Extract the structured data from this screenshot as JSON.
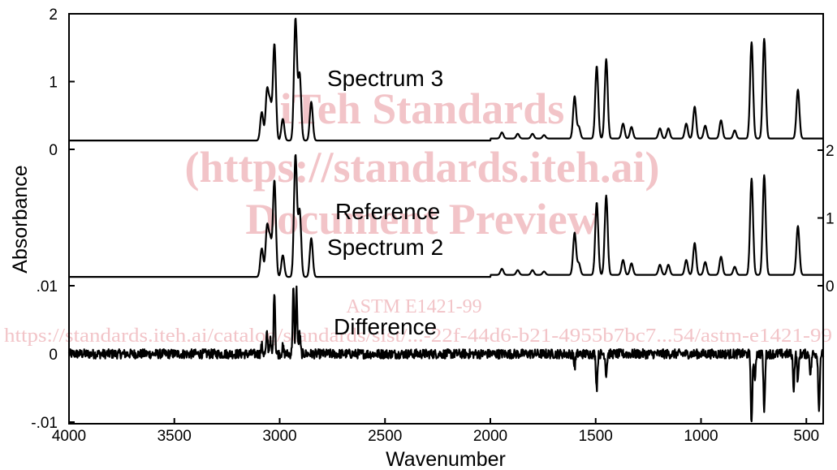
{
  "watermark": {
    "line1": "iTeh Standards",
    "line2": "(https://standards.iteh.ai)",
    "line3": "Document Preview",
    "line4": "ASTM E1421-99",
    "line5": "https://standards.iteh.ai/catalog/standards/sist/...-22f-44d6-b21-4955b7bc7...54/astm-e1421-99"
  },
  "chart_data": {
    "type": "line",
    "xlabel": "Wavenumber",
    "ylabel": "Absorbance",
    "xlim": [
      4000,
      420
    ],
    "x_ticks": [
      4000,
      3500,
      3000,
      2500,
      2000,
      1500,
      1000,
      500
    ],
    "x_tick_labels": [
      "4000",
      "3500",
      "3000",
      "2500",
      "2000",
      "1500",
      "1000",
      "500"
    ],
    "panels": [
      {
        "label": "Spectrum 3",
        "axis": "left",
        "ylim": [
          0,
          2
        ],
        "y_ticks": [
          0,
          1,
          2
        ],
        "y_tick_labels": [
          "0",
          "1",
          "2"
        ],
        "baseline": 0.13,
        "peaks": [
          {
            "x": 3085,
            "y": 0.55
          },
          {
            "x": 3060,
            "y": 0.85
          },
          {
            "x": 3045,
            "y": 0.65
          },
          {
            "x": 3025,
            "y": 1.55
          },
          {
            "x": 2985,
            "y": 0.45
          },
          {
            "x": 2925,
            "y": 1.92
          },
          {
            "x": 2905,
            "y": 1.1
          },
          {
            "x": 2850,
            "y": 0.7
          },
          {
            "x": 1945,
            "y": 0.22
          },
          {
            "x": 1870,
            "y": 0.2
          },
          {
            "x": 1800,
            "y": 0.2
          },
          {
            "x": 1745,
            "y": 0.18
          },
          {
            "x": 1600,
            "y": 0.75
          },
          {
            "x": 1580,
            "y": 0.3
          },
          {
            "x": 1495,
            "y": 1.2
          },
          {
            "x": 1450,
            "y": 1.3
          },
          {
            "x": 1370,
            "y": 0.35
          },
          {
            "x": 1330,
            "y": 0.3
          },
          {
            "x": 1195,
            "y": 0.28
          },
          {
            "x": 1155,
            "y": 0.28
          },
          {
            "x": 1070,
            "y": 0.35
          },
          {
            "x": 1030,
            "y": 0.6
          },
          {
            "x": 980,
            "y": 0.32
          },
          {
            "x": 905,
            "y": 0.4
          },
          {
            "x": 840,
            "y": 0.25
          },
          {
            "x": 760,
            "y": 1.55
          },
          {
            "x": 700,
            "y": 1.6
          },
          {
            "x": 540,
            "y": 0.85
          }
        ]
      },
      {
        "label": "Reference Spectrum 2",
        "label_lines": [
          "Reference",
          "Spectrum 2"
        ],
        "axis": "right",
        "ylim": [
          0,
          2
        ],
        "y_ticks": [
          0,
          1,
          2
        ],
        "y_tick_labels": [
          "0",
          "1",
          "2"
        ],
        "baseline": 0.13,
        "peaks": [
          {
            "x": 3085,
            "y": 0.55
          },
          {
            "x": 3060,
            "y": 0.85
          },
          {
            "x": 3045,
            "y": 0.65
          },
          {
            "x": 3025,
            "y": 1.55
          },
          {
            "x": 2985,
            "y": 0.45
          },
          {
            "x": 2925,
            "y": 1.92
          },
          {
            "x": 2905,
            "y": 1.1
          },
          {
            "x": 2850,
            "y": 0.7
          },
          {
            "x": 1945,
            "y": 0.22
          },
          {
            "x": 1870,
            "y": 0.2
          },
          {
            "x": 1800,
            "y": 0.2
          },
          {
            "x": 1745,
            "y": 0.18
          },
          {
            "x": 1600,
            "y": 0.75
          },
          {
            "x": 1580,
            "y": 0.3
          },
          {
            "x": 1495,
            "y": 1.2
          },
          {
            "x": 1450,
            "y": 1.3
          },
          {
            "x": 1370,
            "y": 0.35
          },
          {
            "x": 1330,
            "y": 0.3
          },
          {
            "x": 1195,
            "y": 0.28
          },
          {
            "x": 1155,
            "y": 0.28
          },
          {
            "x": 1070,
            "y": 0.35
          },
          {
            "x": 1030,
            "y": 0.6
          },
          {
            "x": 980,
            "y": 0.32
          },
          {
            "x": 905,
            "y": 0.4
          },
          {
            "x": 840,
            "y": 0.25
          },
          {
            "x": 760,
            "y": 1.55
          },
          {
            "x": 700,
            "y": 1.6
          },
          {
            "x": 540,
            "y": 0.85
          }
        ]
      },
      {
        "label": "Difference",
        "axis": "left",
        "ylim": [
          -0.01,
          0.01
        ],
        "y_ticks": [
          0.01,
          0,
          -0.01
        ],
        "y_tick_labels": [
          ".01",
          "0",
          "-.01"
        ],
        "baseline": 0.0,
        "noise": 0.0007,
        "peaks": [
          {
            "x": 3085,
            "y": 0.0012
          },
          {
            "x": 3060,
            "y": 0.003
          },
          {
            "x": 3045,
            "y": 0.002
          },
          {
            "x": 3025,
            "y": 0.0095
          },
          {
            "x": 2985,
            "y": 0.001
          },
          {
            "x": 2935,
            "y": 0.0095
          },
          {
            "x": 2920,
            "y": 0.0095
          },
          {
            "x": 2905,
            "y": 0.003
          },
          {
            "x": 1600,
            "y": -0.002
          },
          {
            "x": 1495,
            "y": -0.005
          },
          {
            "x": 1450,
            "y": -0.003
          },
          {
            "x": 760,
            "y": -0.0105
          },
          {
            "x": 745,
            "y": -0.004
          },
          {
            "x": 700,
            "y": -0.0085
          },
          {
            "x": 560,
            "y": -0.005
          },
          {
            "x": 540,
            "y": -0.004
          },
          {
            "x": 480,
            "y": -0.003
          },
          {
            "x": 440,
            "y": -0.0085
          }
        ]
      }
    ]
  }
}
